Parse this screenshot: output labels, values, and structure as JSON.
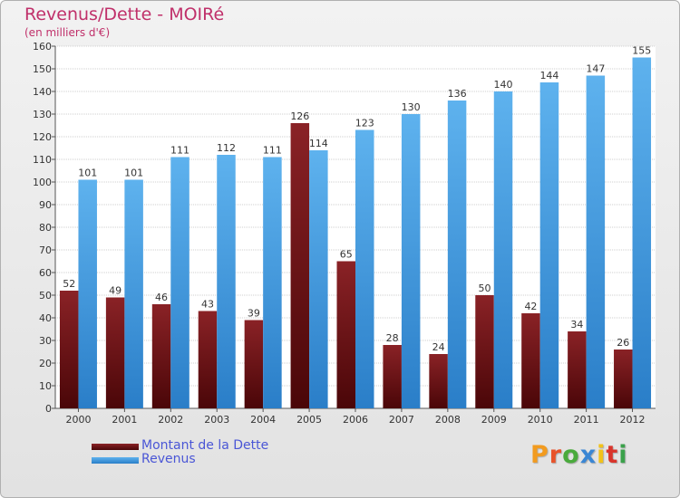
{
  "colors": {
    "title": "#c0306a",
    "dette": "#7a1a1d",
    "revenus": "#3d95dd",
    "axis_text": "#333333",
    "legend_text": "#4a56d6",
    "logo": [
      "#f29b1f",
      "#e8532a",
      "#4aaa3c",
      "#3a86d4",
      "#f2c21a",
      "#d9342b",
      "#3aa14a"
    ]
  },
  "logo": {
    "text": "Proxiti",
    "letters": [
      "P",
      "r",
      "o",
      "x",
      "i",
      "t",
      "i"
    ]
  },
  "chart_data": {
    "type": "bar",
    "title": "Revenus/Dette - MOIRé",
    "subtitle": "(en milliers d'€)",
    "xlabel": "",
    "ylabel": "",
    "ylim": [
      0,
      160
    ],
    "ytick_step": 10,
    "grid": true,
    "categories": [
      "2000",
      "2001",
      "2002",
      "2003",
      "2004",
      "2005",
      "2006",
      "2007",
      "2008",
      "2009",
      "2010",
      "2011",
      "2012"
    ],
    "series": [
      {
        "name": "Montant de la Dette",
        "values": [
          52,
          49,
          46,
          43,
          39,
          126,
          65,
          28,
          24,
          50,
          42,
          34,
          26
        ]
      },
      {
        "name": "Revenus",
        "values": [
          101,
          101,
          111,
          112,
          111,
          114,
          123,
          130,
          136,
          140,
          144,
          147,
          155
        ]
      }
    ],
    "legend": {
      "position": "bottom-left",
      "labels": [
        "Montant de la Dette",
        "Revenus"
      ]
    }
  }
}
